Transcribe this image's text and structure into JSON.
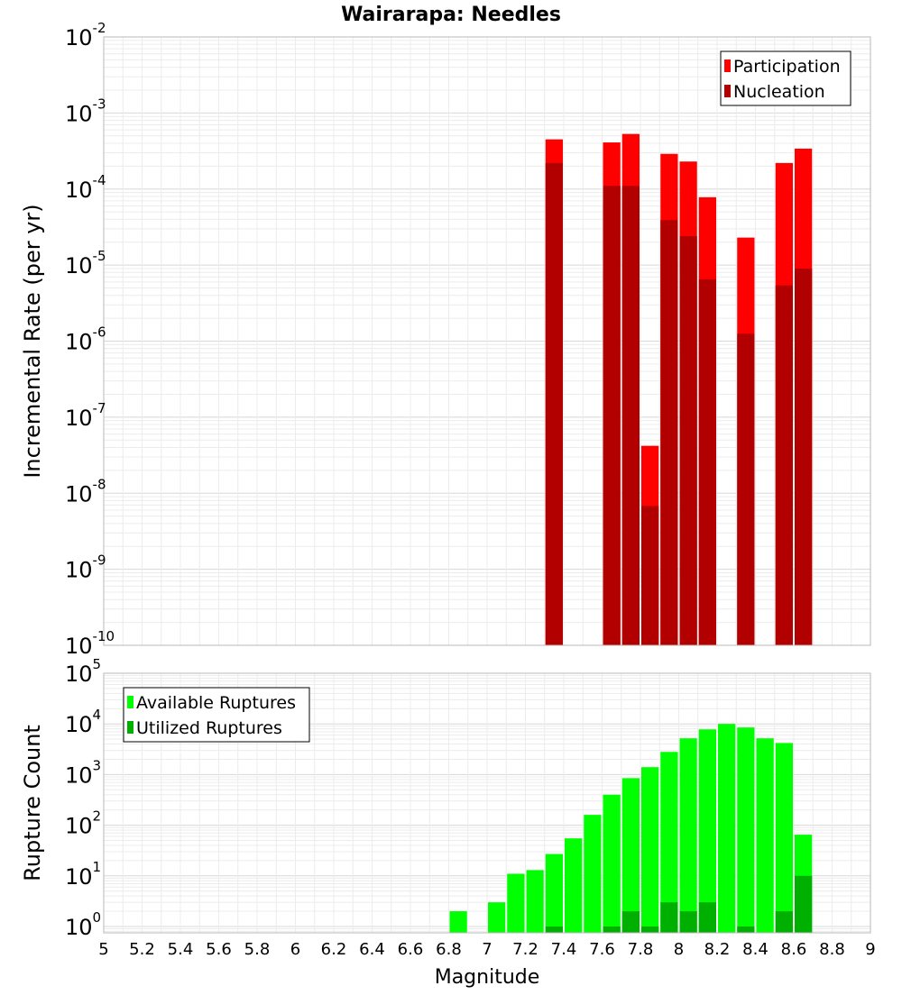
{
  "title": "Wairarapa: Needles",
  "xlabel": "Magnitude",
  "x_ticks": [
    5,
    5.2,
    5.4,
    5.6,
    5.8,
    6,
    6.2,
    6.4,
    6.6,
    6.8,
    7,
    7.2,
    7.4,
    7.6,
    7.8,
    8,
    8.2,
    8.4,
    8.6,
    8.8,
    9
  ],
  "chart_data": [
    {
      "type": "bar",
      "panel": "top",
      "title": "Wairarapa: Needles",
      "xlabel": "Magnitude",
      "ylabel": "Incremental Rate (per yr)",
      "yscale": "log",
      "xlim": [
        5,
        9
      ],
      "ylim": [
        1e-10,
        0.01
      ],
      "y_tick_exponents": [
        -10,
        -9,
        -8,
        -7,
        -6,
        -5,
        -4,
        -3,
        -2
      ],
      "legend": "top-right",
      "series": [
        {
          "name": "Participation",
          "color": "#ff0000",
          "x": [
            7.35,
            7.65,
            7.75,
            7.85,
            7.95,
            8.05,
            8.15,
            8.35,
            8.55,
            8.65
          ],
          "values": [
            0.00045,
            0.00041,
            0.00053,
            4.2e-08,
            0.00029,
            0.00023,
            7.8e-05,
            2.3e-05,
            0.00022,
            0.00034
          ]
        },
        {
          "name": "Nucleation",
          "color": "#b20000",
          "x": [
            7.35,
            7.65,
            7.75,
            7.85,
            7.95,
            8.05,
            8.15,
            8.35,
            8.55,
            8.65
          ],
          "values": [
            0.00022,
            0.00011,
            0.00011,
            6.8e-09,
            3.9e-05,
            2.4e-05,
            6.5e-06,
            1.25e-06,
            5.4e-06,
            9e-06
          ]
        }
      ]
    },
    {
      "type": "bar",
      "panel": "bottom",
      "xlabel": "Magnitude",
      "ylabel": "Rupture Count",
      "yscale": "log",
      "xlim": [
        5,
        9
      ],
      "ylim": [
        0.75,
        100000.0
      ],
      "y_tick_exponents": [
        0,
        1,
        2,
        3,
        4,
        5
      ],
      "legend": "top-left",
      "series": [
        {
          "name": "Available Ruptures",
          "color": "#00ff00",
          "x": [
            6.85,
            7.05,
            7.15,
            7.25,
            7.35,
            7.45,
            7.55,
            7.65,
            7.75,
            7.85,
            7.95,
            8.05,
            8.15,
            8.25,
            8.35,
            8.45,
            8.55,
            8.65
          ],
          "values": [
            2,
            3,
            11,
            13,
            27,
            55,
            160,
            400,
            850,
            1400,
            2800,
            5200,
            7800,
            10000,
            8500,
            5200,
            4200,
            65
          ]
        },
        {
          "name": "Utilized Ruptures",
          "color": "#00b000",
          "x": [
            7.35,
            7.65,
            7.75,
            7.85,
            7.95,
            8.05,
            8.15,
            8.35,
            8.55,
            8.65
          ],
          "values": [
            1,
            1,
            2,
            1,
            3,
            2,
            3,
            1,
            2,
            10
          ]
        }
      ]
    }
  ]
}
